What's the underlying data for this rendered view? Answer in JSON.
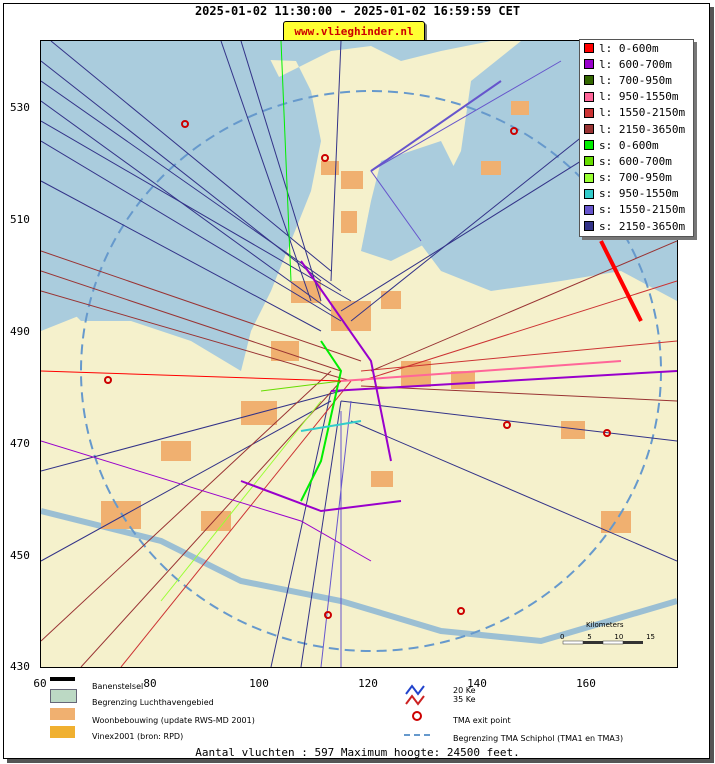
{
  "title": "2025-01-02 11:30:00 - 2025-01-02 16:59:59 CET",
  "site": "www.vlieghinder.nl",
  "legend": [
    {
      "label": "l: 0-600m",
      "color": "#ff0000"
    },
    {
      "label": "l: 600-700m",
      "color": "#9900cc"
    },
    {
      "label": "l: 700-950m",
      "color": "#336600"
    },
    {
      "label": "l: 950-1550m",
      "color": "#ff6699"
    },
    {
      "label": "l: 1550-2150m",
      "color": "#cc3333"
    },
    {
      "label": "l: 2150-3650m",
      "color": "#993333"
    },
    {
      "label": "s: 0-600m",
      "color": "#00ee00"
    },
    {
      "label": "s: 600-700m",
      "color": "#66dd00"
    },
    {
      "label": "s: 700-950m",
      "color": "#99ff33"
    },
    {
      "label": "s: 950-1550m",
      "color": "#33cccc"
    },
    {
      "label": "s: 1550-2150m",
      "color": "#6655cc"
    },
    {
      "label": "s: 2150-3650m",
      "color": "#333388"
    }
  ],
  "y_ticks": [
    "530",
    "510",
    "490",
    "470",
    "450",
    "430"
  ],
  "x_ticks": [
    "60",
    "80",
    "100",
    "120",
    "140",
    "160"
  ],
  "scale": {
    "title": "Kilometers",
    "labels": [
      "0",
      "5",
      "10",
      "15"
    ]
  },
  "bottom_legend": {
    "runways": "Banenstelsel",
    "airport_boundary": "Begrenzing Luchthavengebied",
    "housing": "Woonbebouwing (update RWS-MD 2001)",
    "vinex": "Vinex2001 (bron: RPD)",
    "ke20": "20 Ke",
    "ke35": "35 Ke",
    "tma_exit": "TMA exit point",
    "tma_boundary": "Begrenzing TMA Schiphol  (TMA1 en TMA3)"
  },
  "footer": "Aantal vluchten : 597 Maximum hoogte: 24500 feet.",
  "colors": {
    "sea": "#aaccdd",
    "land": "#f5f1cc",
    "urban": "#f0b070"
  }
}
